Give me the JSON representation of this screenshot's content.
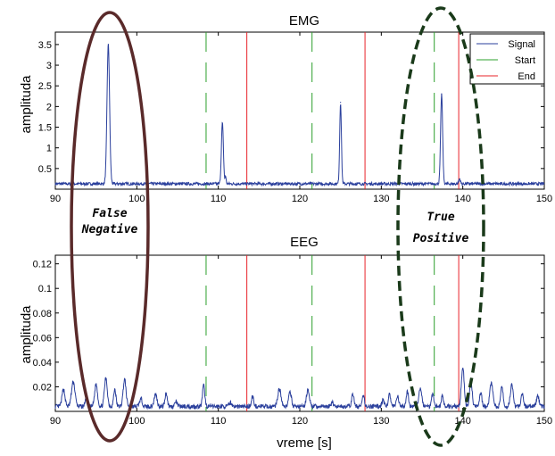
{
  "chart_data": [
    {
      "type": "line",
      "title": "EMG",
      "xlabel": "",
      "ylabel": "amplituda",
      "xlim": [
        90,
        150
      ],
      "ylim": [
        0,
        3.8
      ],
      "xticks": [
        90,
        100,
        110,
        120,
        130,
        140,
        150
      ],
      "yticks": [
        0.5,
        1,
        1.5,
        2,
        2.5,
        3,
        3.5
      ],
      "ytick_labels": [
        "0.5",
        "1",
        "1.5",
        "2",
        "2.5",
        "3",
        "3.5"
      ],
      "legend": {
        "position": "top-right",
        "entries": [
          "Signal",
          "Start",
          "End"
        ]
      },
      "series": [
        {
          "name": "Signal",
          "color": "#2a3f9c",
          "baseline": 0.13,
          "peaks": [
            {
              "x": 96.5,
              "y": 3.5,
              "w": 0.45
            },
            {
              "x": 110.5,
              "y": 1.6,
              "w": 0.35
            },
            {
              "x": 110.9,
              "y": 0.3,
              "w": 0.2
            },
            {
              "x": 125.0,
              "y": 2.1,
              "w": 0.3
            },
            {
              "x": 137.4,
              "y": 2.3,
              "w": 0.35
            },
            {
              "x": 139.6,
              "y": 0.25,
              "w": 0.3
            }
          ]
        },
        {
          "name": "Start",
          "color": "#2ca02c",
          "x": [
            108.5,
            121.5,
            136.5
          ]
        },
        {
          "name": "End",
          "color": "#e8232a",
          "x": [
            113.5,
            128.0,
            139.5
          ]
        }
      ],
      "grid": false
    },
    {
      "type": "line",
      "title": "EEG",
      "xlabel": "vreme [s]",
      "ylabel": "amplituda",
      "xlim": [
        90,
        150
      ],
      "ylim": [
        0,
        0.127
      ],
      "xticks": [
        90,
        100,
        110,
        120,
        130,
        140,
        150
      ],
      "yticks": [
        0.02,
        0.04,
        0.06,
        0.08,
        0.1,
        0.12
      ],
      "ytick_labels": [
        "0.02",
        "0.04",
        "0.06",
        "0.08",
        "0.1",
        "0.12"
      ],
      "series": [
        {
          "name": "Signal",
          "color": "#2a3f9c",
          "baseline": 0.004,
          "peaks": [
            {
              "x": 91.0,
              "y": 0.018,
              "w": 0.5
            },
            {
              "x": 92.2,
              "y": 0.024,
              "w": 0.6
            },
            {
              "x": 93.8,
              "y": 0.012,
              "w": 0.4
            },
            {
              "x": 95.0,
              "y": 0.022,
              "w": 0.5
            },
            {
              "x": 96.2,
              "y": 0.027,
              "w": 0.5
            },
            {
              "x": 97.3,
              "y": 0.018,
              "w": 0.4
            },
            {
              "x": 98.5,
              "y": 0.026,
              "w": 0.5
            },
            {
              "x": 100.5,
              "y": 0.01,
              "w": 0.5
            },
            {
              "x": 102.3,
              "y": 0.014,
              "w": 0.5
            },
            {
              "x": 103.6,
              "y": 0.015,
              "w": 0.4
            },
            {
              "x": 104.8,
              "y": 0.008,
              "w": 0.4
            },
            {
              "x": 108.2,
              "y": 0.021,
              "w": 0.4
            },
            {
              "x": 111.5,
              "y": 0.007,
              "w": 0.5
            },
            {
              "x": 114.2,
              "y": 0.012,
              "w": 0.4
            },
            {
              "x": 117.5,
              "y": 0.018,
              "w": 0.6
            },
            {
              "x": 118.8,
              "y": 0.015,
              "w": 0.5
            },
            {
              "x": 121.0,
              "y": 0.018,
              "w": 0.5
            },
            {
              "x": 124.0,
              "y": 0.007,
              "w": 0.5
            },
            {
              "x": 126.5,
              "y": 0.014,
              "w": 0.4
            },
            {
              "x": 127.8,
              "y": 0.012,
              "w": 0.4
            },
            {
              "x": 130.2,
              "y": 0.009,
              "w": 0.4
            },
            {
              "x": 131.0,
              "y": 0.014,
              "w": 0.4
            },
            {
              "x": 132.0,
              "y": 0.012,
              "w": 0.4
            },
            {
              "x": 133.2,
              "y": 0.016,
              "w": 0.4
            },
            {
              "x": 134.8,
              "y": 0.019,
              "w": 0.5
            },
            {
              "x": 136.3,
              "y": 0.015,
              "w": 0.4
            },
            {
              "x": 137.5,
              "y": 0.012,
              "w": 0.4
            },
            {
              "x": 140.0,
              "y": 0.035,
              "w": 0.5
            },
            {
              "x": 141.0,
              "y": 0.026,
              "w": 0.4
            },
            {
              "x": 142.2,
              "y": 0.015,
              "w": 0.4
            },
            {
              "x": 143.5,
              "y": 0.024,
              "w": 0.5
            },
            {
              "x": 144.8,
              "y": 0.02,
              "w": 0.4
            },
            {
              "x": 146.0,
              "y": 0.021,
              "w": 0.5
            },
            {
              "x": 147.3,
              "y": 0.014,
              "w": 0.4
            },
            {
              "x": 149.2,
              "y": 0.012,
              "w": 0.5
            }
          ]
        },
        {
          "name": "Start",
          "color": "#2ca02c",
          "x": [
            108.5,
            121.5,
            136.5
          ]
        },
        {
          "name": "End",
          "color": "#e8232a",
          "x": [
            113.5,
            128.0,
            139.5
          ]
        }
      ],
      "grid": false
    }
  ],
  "annotations": [
    {
      "name": "false-negative",
      "lines": [
        "False",
        "Negative"
      ],
      "ellipse_color": "#5a2a2a",
      "ellipse_style": "solid"
    },
    {
      "name": "true-positive",
      "lines": [
        "True",
        "Positive"
      ],
      "ellipse_color": "#1a3a1a",
      "ellipse_style": "dashed"
    }
  ]
}
